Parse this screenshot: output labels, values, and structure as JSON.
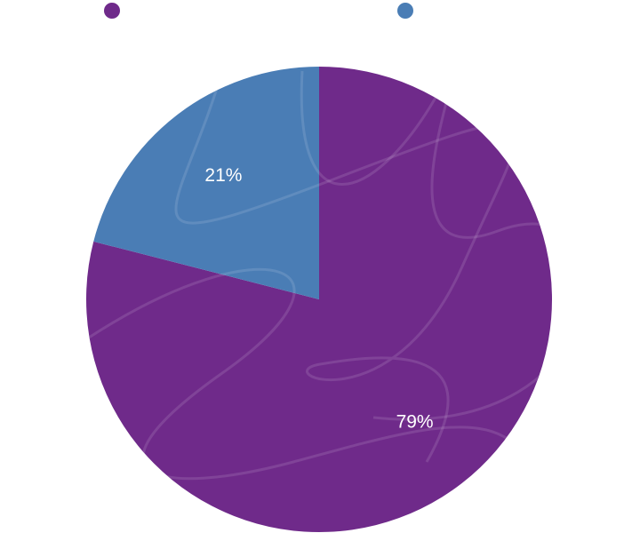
{
  "chart_data": {
    "type": "pie",
    "values": [
      79,
      21
    ],
    "value_labels": [
      "79%",
      "21%"
    ],
    "colors": [
      "#6f2a8a",
      "#4a7db5"
    ]
  }
}
